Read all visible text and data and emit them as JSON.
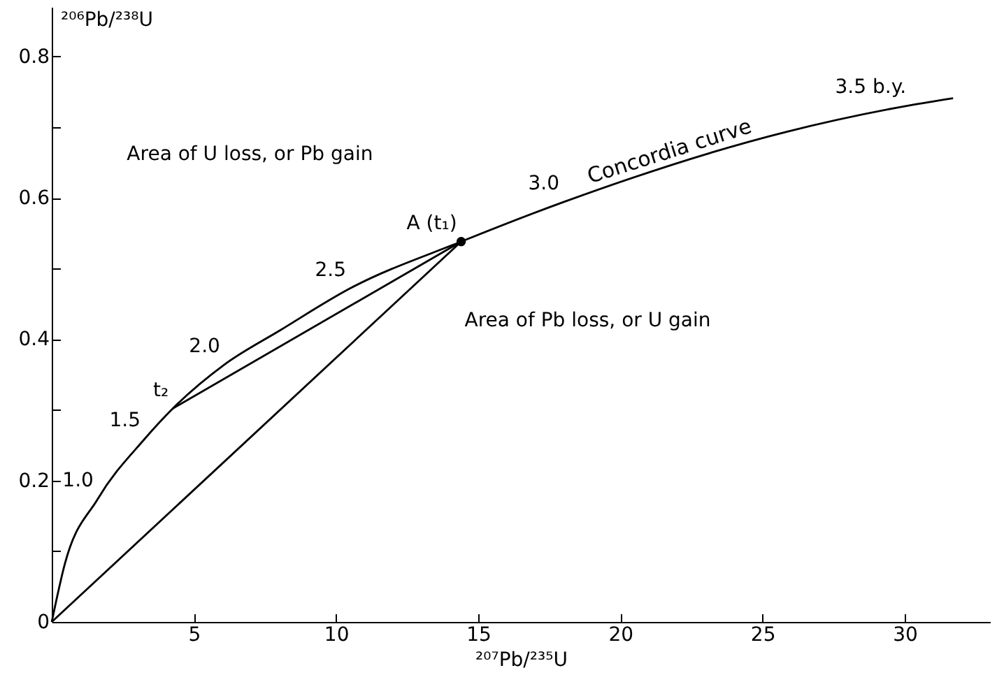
{
  "chart_data": {
    "type": "line",
    "xlabel": "²⁰⁷Pb/²³⁵U",
    "ylabel": "²⁰⁶Pb/²³⁸U",
    "xlim": [
      0,
      33
    ],
    "ylim": [
      0,
      0.87
    ],
    "xticks": [
      5,
      10,
      15,
      20,
      25,
      30
    ],
    "yticks": [
      0,
      {
        "value": 0.1,
        "label": null
      },
      0.2,
      {
        "value": 0.3,
        "label": null
      },
      0.4,
      {
        "value": 0.5,
        "label": null
      },
      0.6,
      {
        "value": 0.7,
        "label": null
      },
      0.8
    ],
    "series": [
      {
        "name": "Concordia curve",
        "color": "#000000",
        "x": [
          0,
          0.46,
          1.62,
          3.27,
          4.26,
          6.07,
          8.05,
          10.5,
          14.4,
          18.0,
          25.8,
          30.2,
          31.7
        ],
        "values": [
          0,
          0.082,
          0.174,
          0.259,
          0.302,
          0.364,
          0.413,
          0.472,
          0.538,
          0.594,
          0.693,
          0.731,
          0.741
        ]
      },
      {
        "color": "#000000",
        "x": [
          14.4,
          4.26
        ],
        "values": [
          0.538,
          0.302
        ]
      },
      {
        "color": "#000000",
        "x": [
          14.4,
          0
        ],
        "values": [
          0.538,
          0
        ]
      },
      {
        "type": "scatter",
        "color": "#000000",
        "marker": "circle",
        "x": [
          14.4
        ],
        "values": [
          0.538
        ]
      }
    ],
    "annotations": [
      {
        "text": "1.0",
        "x": 1.62,
        "y": 0.174
      },
      {
        "text": "1.5",
        "x": 3.27,
        "y": 0.259
      },
      {
        "text": "t₂",
        "x": 4.26,
        "y": 0.302
      },
      {
        "text": "2.0",
        "x": 6.07,
        "y": 0.364
      },
      {
        "text": "2.5",
        "x": 10.5,
        "y": 0.472
      },
      {
        "text": "A (t₁)",
        "x": 14.4,
        "y": 0.538
      },
      {
        "text": "3.0",
        "x": 18.0,
        "y": 0.594
      },
      {
        "text": "3.5 b.y.",
        "x": 30.2,
        "y": 0.731
      },
      "Area of U loss, or Pb gain",
      "Area of Pb loss, or U gain"
    ]
  }
}
